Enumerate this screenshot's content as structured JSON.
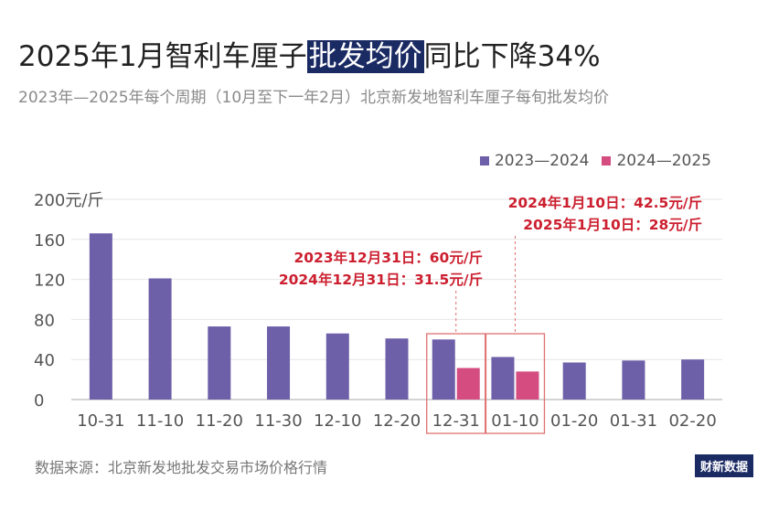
{
  "header": {
    "title_before": "2025年1月智利车厘子",
    "title_highlight": "批发均价",
    "title_after": "同比下降34%",
    "subtitle": "2023年—2025年每个周期（10月至下一年2月）北京新发地智利车厘子每旬批发均价"
  },
  "footer": {
    "source": "数据来源：北京新发地批发交易市场价格行情",
    "brand": "财新数据"
  },
  "colors": {
    "series1": "#6d5fa8",
    "series2": "#d44c80",
    "annotation": "#cc1f2f",
    "box": "#e07070",
    "gridline": "#e6e6e6",
    "axis": "#bbbbbb"
  },
  "chart_data": {
    "type": "bar",
    "categories": [
      "10-31",
      "11-10",
      "11-20",
      "11-30",
      "12-10",
      "12-20",
      "12-31",
      "01-10",
      "01-20",
      "01-31",
      "02-20"
    ],
    "series": [
      {
        "name": "2023—2024",
        "values": [
          166,
          121,
          73,
          73,
          66,
          61,
          60,
          42.5,
          37,
          39,
          40
        ]
      },
      {
        "name": "2024—2025",
        "values": [
          null,
          null,
          null,
          null,
          null,
          null,
          31.5,
          28,
          null,
          null,
          null
        ]
      }
    ],
    "ylim": [
      0,
      200
    ],
    "yticks": [
      0,
      40,
      80,
      120,
      160,
      200
    ],
    "ytick_labels": [
      "0",
      "40",
      "80",
      "120",
      "160",
      "200元/斤"
    ],
    "legend_position": "top-right",
    "annotations": [
      {
        "category": "12-31",
        "lines": [
          "2023年12月31日：60元/斤",
          "2024年12月31日：31.5元/斤"
        ]
      },
      {
        "category": "01-10",
        "lines": [
          "2024年1月10日：42.5元/斤",
          "2025年1月10日：28元/斤"
        ]
      }
    ]
  }
}
